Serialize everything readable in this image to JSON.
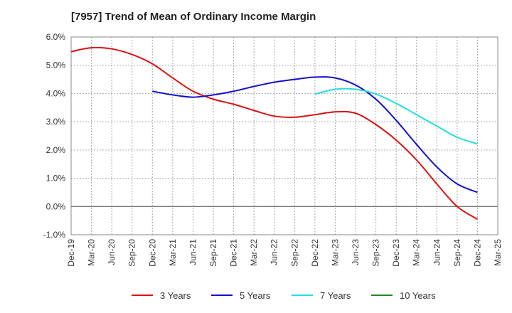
{
  "chart_data": {
    "type": "line",
    "title": "[7957]  Trend of Mean of Ordinary Income Margin",
    "xlabel": "",
    "ylabel": "",
    "ylim": [
      -1.0,
      6.0
    ],
    "yticks": [
      -1.0,
      0.0,
      1.0,
      2.0,
      3.0,
      4.0,
      5.0,
      6.0
    ],
    "ytick_labels": [
      "-1.0%",
      "0.0%",
      "1.0%",
      "2.0%",
      "3.0%",
      "4.0%",
      "5.0%",
      "6.0%"
    ],
    "x_categories": [
      "Dec-19",
      "Mar-20",
      "Jun-20",
      "Sep-20",
      "Dec-20",
      "Mar-21",
      "Jun-21",
      "Sep-21",
      "Dec-21",
      "Mar-22",
      "Jun-22",
      "Sep-22",
      "Dec-22",
      "Mar-23",
      "Jun-23",
      "Sep-23",
      "Dec-23",
      "Mar-24",
      "Jun-24",
      "Sep-24",
      "Dec-24",
      "Mar-25"
    ],
    "grid": true,
    "legend_position": "bottom",
    "series": [
      {
        "name": "3 Years",
        "color": "#dd1111",
        "x": [
          "Dec-19",
          "Mar-20",
          "Jun-20",
          "Sep-20",
          "Dec-20",
          "Mar-21",
          "Jun-21",
          "Sep-21",
          "Dec-21",
          "Mar-22",
          "Jun-22",
          "Sep-22",
          "Dec-22",
          "Mar-23",
          "Jun-23",
          "Sep-23",
          "Dec-23",
          "Mar-24",
          "Jun-24",
          "Sep-24",
          "Dec-24"
        ],
        "values": [
          5.48,
          5.62,
          5.58,
          5.38,
          5.05,
          4.55,
          4.08,
          3.8,
          3.62,
          3.4,
          3.2,
          3.16,
          3.25,
          3.35,
          3.3,
          2.9,
          2.35,
          1.65,
          0.8,
          0.0,
          -0.45
        ]
      },
      {
        "name": "5 Years",
        "color": "#1111cc",
        "x": [
          "Dec-20",
          "Mar-21",
          "Jun-21",
          "Sep-21",
          "Dec-21",
          "Mar-22",
          "Jun-22",
          "Sep-22",
          "Dec-22",
          "Mar-23",
          "Jun-23",
          "Sep-23",
          "Dec-23",
          "Mar-24",
          "Jun-24",
          "Sep-24",
          "Dec-24"
        ],
        "values": [
          4.08,
          3.95,
          3.87,
          3.95,
          4.08,
          4.25,
          4.4,
          4.5,
          4.58,
          4.55,
          4.3,
          3.8,
          3.05,
          2.2,
          1.4,
          0.8,
          0.5
        ]
      },
      {
        "name": "7 Years",
        "color": "#22dddd",
        "x": [
          "Dec-22",
          "Mar-23",
          "Jun-23",
          "Sep-23",
          "Dec-23",
          "Mar-24",
          "Jun-24",
          "Sep-24",
          "Dec-24"
        ],
        "values": [
          3.98,
          4.15,
          4.15,
          3.98,
          3.65,
          3.25,
          2.85,
          2.45,
          2.22
        ]
      },
      {
        "name": "10 Years",
        "color": "#228822",
        "x": [],
        "values": []
      }
    ]
  }
}
